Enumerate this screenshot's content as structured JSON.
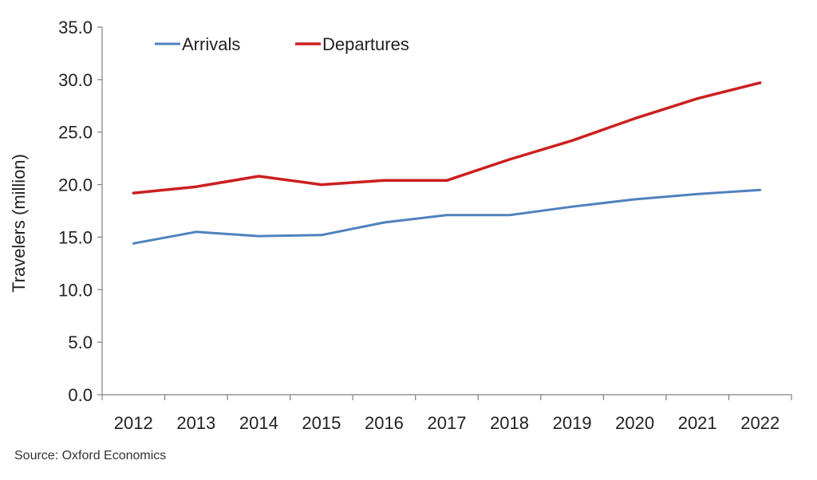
{
  "chart_data": {
    "type": "line",
    "title": "",
    "ylabel": "Travelers (million)",
    "xlabel": "",
    "categories": [
      "2012",
      "2013",
      "2014",
      "2015",
      "2016",
      "2017",
      "2018",
      "2019",
      "2020",
      "2021",
      "2022"
    ],
    "series": [
      {
        "name": "Arrivals",
        "color": "#4F81BD",
        "values": [
          14.4,
          15.5,
          15.1,
          15.2,
          16.4,
          17.1,
          17.1,
          17.9,
          18.6,
          19.1,
          19.5
        ]
      },
      {
        "name": "Departures",
        "color": "#CC1F1F",
        "values": [
          19.2,
          19.8,
          20.8,
          20.0,
          20.4,
          20.4,
          22.4,
          24.2,
          26.3,
          28.2,
          29.7
        ]
      }
    ],
    "ylim": [
      0,
      35
    ],
    "yticks": [
      "0.0",
      "5.0",
      "10.0",
      "15.0",
      "20.0",
      "25.0",
      "30.0",
      "35.0"
    ],
    "ytick_values": [
      0,
      5,
      10,
      15,
      20,
      25,
      30,
      35
    ],
    "grid": false,
    "legend_position": "top-left"
  },
  "footer": {
    "source": "Source: Oxford Economics"
  },
  "colors": {
    "axis": "#808080",
    "text": "#222222"
  }
}
